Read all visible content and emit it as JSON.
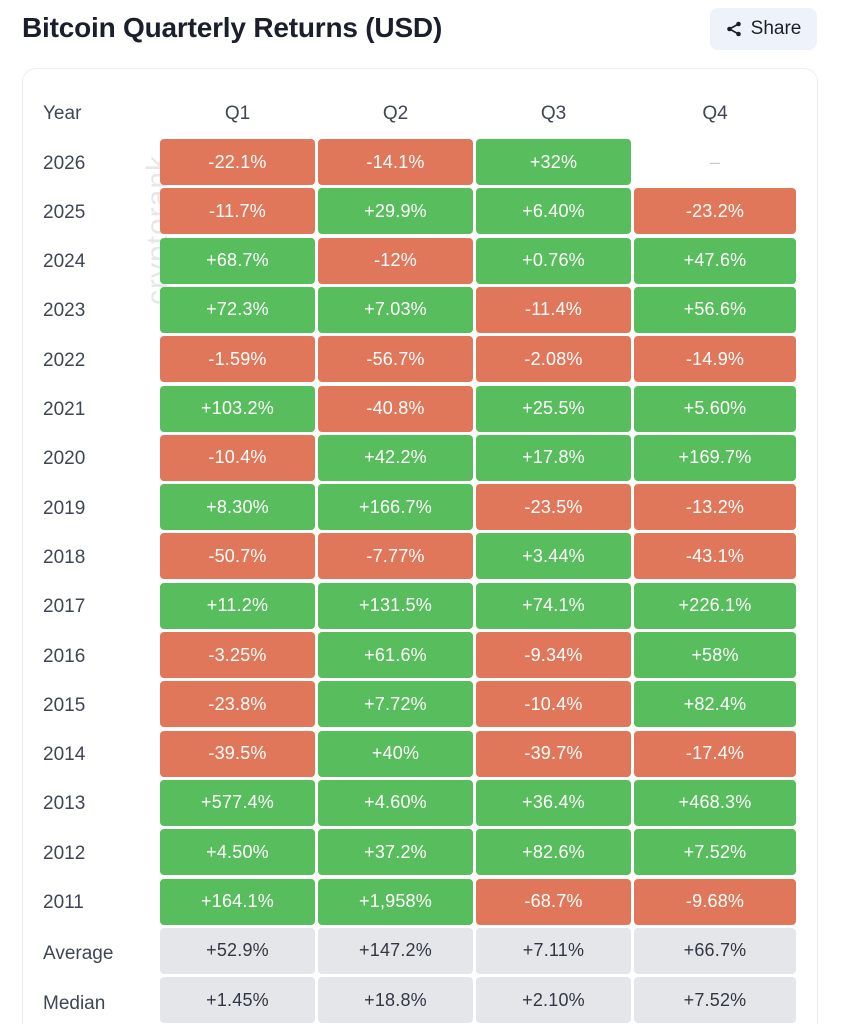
{
  "header": {
    "title": "Bitcoin Quarterly Returns (USD)",
    "share_label": "Share",
    "share_icon": "share-icon"
  },
  "watermark": "cryptorank",
  "colors": {
    "positive": "#58bd5c",
    "negative": "#e0775a",
    "summary": "#e5e6ea"
  },
  "chart_data": {
    "type": "table",
    "title": "Bitcoin Quarterly Returns (USD)",
    "columns": [
      "Year",
      "Q1",
      "Q2",
      "Q3",
      "Q4"
    ],
    "rows": [
      {
        "year": "2026",
        "values": [
          "-22.1%",
          "-14.1%",
          "+32%",
          "–"
        ]
      },
      {
        "year": "2025",
        "values": [
          "-11.7%",
          "+29.9%",
          "+6.40%",
          "-23.2%"
        ]
      },
      {
        "year": "2024",
        "values": [
          "+68.7%",
          "-12%",
          "+0.76%",
          "+47.6%"
        ]
      },
      {
        "year": "2023",
        "values": [
          "+72.3%",
          "+7.03%",
          "-11.4%",
          "+56.6%"
        ]
      },
      {
        "year": "2022",
        "values": [
          "-1.59%",
          "-56.7%",
          "-2.08%",
          "-14.9%"
        ]
      },
      {
        "year": "2021",
        "values": [
          "+103.2%",
          "-40.8%",
          "+25.5%",
          "+5.60%"
        ]
      },
      {
        "year": "2020",
        "values": [
          "-10.4%",
          "+42.2%",
          "+17.8%",
          "+169.7%"
        ]
      },
      {
        "year": "2019",
        "values": [
          "+8.30%",
          "+166.7%",
          "-23.5%",
          "-13.2%"
        ]
      },
      {
        "year": "2018",
        "values": [
          "-50.7%",
          "-7.77%",
          "+3.44%",
          "-43.1%"
        ]
      },
      {
        "year": "2017",
        "values": [
          "+11.2%",
          "+131.5%",
          "+74.1%",
          "+226.1%"
        ]
      },
      {
        "year": "2016",
        "values": [
          "-3.25%",
          "+61.6%",
          "-9.34%",
          "+58%"
        ]
      },
      {
        "year": "2015",
        "values": [
          "-23.8%",
          "+7.72%",
          "-10.4%",
          "+82.4%"
        ]
      },
      {
        "year": "2014",
        "values": [
          "-39.5%",
          "+40%",
          "-39.7%",
          "-17.4%"
        ]
      },
      {
        "year": "2013",
        "values": [
          "+577.4%",
          "+4.60%",
          "+36.4%",
          "+468.3%"
        ]
      },
      {
        "year": "2012",
        "values": [
          "+4.50%",
          "+37.2%",
          "+82.6%",
          "+7.52%"
        ]
      },
      {
        "year": "2011",
        "values": [
          "+164.1%",
          "+1,958%",
          "-68.7%",
          "-9.68%"
        ]
      }
    ],
    "summary": [
      {
        "label": "Average",
        "values": [
          "+52.9%",
          "+147.2%",
          "+7.11%",
          "+66.7%"
        ]
      },
      {
        "label": "Median",
        "values": [
          "+1.45%",
          "+18.8%",
          "+2.10%",
          "+7.52%"
        ]
      }
    ]
  }
}
